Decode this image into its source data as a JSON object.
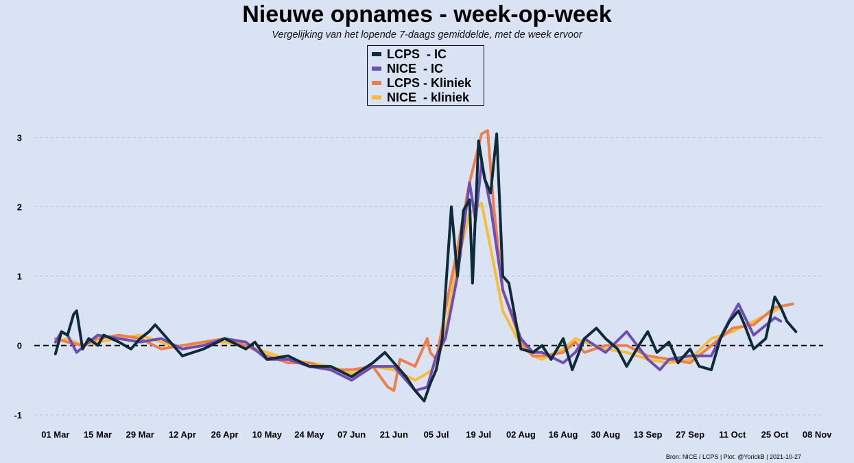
{
  "chart_data": {
    "type": "line",
    "title": "Nieuwe opnames - week-op-week",
    "subtitle": "Vergelijking van het lopende 7-daags gemiddelde, met de week ervoor",
    "xlabel": "",
    "ylabel": "",
    "x_range": [
      "2021-02-22",
      "2021-11-10"
    ],
    "ylim": [
      -1.15,
      3.35
    ],
    "yticks": [
      -1,
      0,
      1,
      2,
      3
    ],
    "ytick_labels": [
      "-1",
      "0",
      "1",
      "2",
      "3"
    ],
    "xticks": [
      "2021-03-01",
      "2021-03-15",
      "2021-03-29",
      "2021-04-12",
      "2021-04-26",
      "2021-05-10",
      "2021-05-24",
      "2021-06-07",
      "2021-06-21",
      "2021-07-05",
      "2021-07-19",
      "2021-08-02",
      "2021-08-16",
      "2021-08-30",
      "2021-09-13",
      "2021-09-27",
      "2021-10-11",
      "2021-10-25",
      "2021-11-08"
    ],
    "xtick_labels": [
      "01 Mar",
      "15 Mar",
      "29 Mar",
      "12 Apr",
      "26 Apr",
      "10 May",
      "24 May",
      "07 Jun",
      "21 Jun",
      "05 Jul",
      "19 Jul",
      "02 Aug",
      "16 Aug",
      "30 Aug",
      "13 Sep",
      "27 Sep",
      "11 Oct",
      "25 Oct",
      "08 Nov"
    ],
    "grid": "horizontal dashed",
    "zero_line": "dashed black",
    "legend_position": "top-center",
    "series": [
      {
        "name": "NICE  - kliniek",
        "color": "#f5bd3c",
        "points": [
          [
            "2021-03-01",
            0.05
          ],
          [
            "2021-03-05",
            0.1
          ],
          [
            "2021-03-10",
            0.0
          ],
          [
            "2021-03-15",
            0.05
          ],
          [
            "2021-03-22",
            0.1
          ],
          [
            "2021-03-29",
            0.15
          ],
          [
            "2021-04-05",
            0.05
          ],
          [
            "2021-04-12",
            -0.05
          ],
          [
            "2021-04-19",
            0.05
          ],
          [
            "2021-04-26",
            0.05
          ],
          [
            "2021-05-03",
            0.0
          ],
          [
            "2021-05-10",
            -0.1
          ],
          [
            "2021-05-17",
            -0.2
          ],
          [
            "2021-05-24",
            -0.25
          ],
          [
            "2021-05-31",
            -0.3
          ],
          [
            "2021-06-07",
            -0.4
          ],
          [
            "2021-06-14",
            -0.3
          ],
          [
            "2021-06-21",
            -0.35
          ],
          [
            "2021-06-28",
            -0.5
          ],
          [
            "2021-07-02",
            -0.4
          ],
          [
            "2021-07-05",
            -0.3
          ],
          [
            "2021-07-08",
            0.2
          ],
          [
            "2021-07-12",
            1.2
          ],
          [
            "2021-07-16",
            1.9
          ],
          [
            "2021-07-20",
            2.05
          ],
          [
            "2021-07-23",
            1.4
          ],
          [
            "2021-07-27",
            0.5
          ],
          [
            "2021-08-02",
            0.0
          ],
          [
            "2021-08-06",
            -0.15
          ],
          [
            "2021-08-09",
            -0.2
          ],
          [
            "2021-08-16",
            -0.05
          ],
          [
            "2021-08-20",
            0.1
          ],
          [
            "2021-08-23",
            0.05
          ],
          [
            "2021-08-30",
            -0.05
          ],
          [
            "2021-09-06",
            -0.1
          ],
          [
            "2021-09-13",
            -0.2
          ],
          [
            "2021-09-20",
            -0.25
          ],
          [
            "2021-09-27",
            -0.2
          ],
          [
            "2021-10-04",
            0.1
          ],
          [
            "2021-10-11",
            0.2
          ],
          [
            "2021-10-18",
            0.35
          ],
          [
            "2021-10-25",
            0.5
          ],
          [
            "2021-10-27",
            0.55
          ]
        ]
      },
      {
        "name": "LCPS - Kliniek",
        "color": "#ed7f4e",
        "points": [
          [
            "2021-03-01",
            0.1
          ],
          [
            "2021-03-05",
            0.05
          ],
          [
            "2021-03-10",
            0.0
          ],
          [
            "2021-03-15",
            0.1
          ],
          [
            "2021-03-22",
            0.15
          ],
          [
            "2021-03-29",
            0.1
          ],
          [
            "2021-04-05",
            -0.05
          ],
          [
            "2021-04-12",
            0.0
          ],
          [
            "2021-04-19",
            0.05
          ],
          [
            "2021-04-26",
            0.1
          ],
          [
            "2021-05-03",
            0.0
          ],
          [
            "2021-05-10",
            -0.15
          ],
          [
            "2021-05-17",
            -0.25
          ],
          [
            "2021-05-24",
            -0.25
          ],
          [
            "2021-05-31",
            -0.35
          ],
          [
            "2021-06-07",
            -0.35
          ],
          [
            "2021-06-14",
            -0.3
          ],
          [
            "2021-06-19",
            -0.6
          ],
          [
            "2021-06-21",
            -0.65
          ],
          [
            "2021-06-23",
            -0.2
          ],
          [
            "2021-06-28",
            -0.3
          ],
          [
            "2021-07-02",
            0.1
          ],
          [
            "2021-07-03",
            -0.1
          ],
          [
            "2021-07-05",
            -0.2
          ],
          [
            "2021-07-08",
            0.5
          ],
          [
            "2021-07-12",
            1.4
          ],
          [
            "2021-07-16",
            2.35
          ],
          [
            "2021-07-20",
            3.05
          ],
          [
            "2021-07-22",
            3.1
          ],
          [
            "2021-07-24",
            2.0
          ],
          [
            "2021-07-27",
            0.8
          ],
          [
            "2021-08-02",
            0.05
          ],
          [
            "2021-08-06",
            -0.15
          ],
          [
            "2021-08-09",
            -0.15
          ],
          [
            "2021-08-16",
            -0.1
          ],
          [
            "2021-08-20",
            0.05
          ],
          [
            "2021-08-23",
            -0.1
          ],
          [
            "2021-08-30",
            0.0
          ],
          [
            "2021-09-06",
            0.0
          ],
          [
            "2021-09-13",
            -0.15
          ],
          [
            "2021-09-20",
            -0.2
          ],
          [
            "2021-09-27",
            -0.25
          ],
          [
            "2021-10-04",
            0.0
          ],
          [
            "2021-10-11",
            0.25
          ],
          [
            "2021-10-18",
            0.3
          ],
          [
            "2021-10-25",
            0.55
          ],
          [
            "2021-10-31",
            0.6
          ]
        ]
      },
      {
        "name": "NICE  - IC",
        "color": "#6d4fb3",
        "points": [
          [
            "2021-03-01",
            0.05
          ],
          [
            "2021-03-03",
            0.2
          ],
          [
            "2021-03-05",
            0.15
          ],
          [
            "2021-03-08",
            -0.1
          ],
          [
            "2021-03-12",
            0.05
          ],
          [
            "2021-03-15",
            0.15
          ],
          [
            "2021-03-22",
            0.1
          ],
          [
            "2021-03-29",
            0.05
          ],
          [
            "2021-04-05",
            0.1
          ],
          [
            "2021-04-12",
            -0.05
          ],
          [
            "2021-04-19",
            0.0
          ],
          [
            "2021-04-26",
            0.1
          ],
          [
            "2021-05-03",
            0.05
          ],
          [
            "2021-05-10",
            -0.2
          ],
          [
            "2021-05-17",
            -0.2
          ],
          [
            "2021-05-24",
            -0.3
          ],
          [
            "2021-05-31",
            -0.35
          ],
          [
            "2021-06-07",
            -0.5
          ],
          [
            "2021-06-14",
            -0.3
          ],
          [
            "2021-06-21",
            -0.3
          ],
          [
            "2021-06-28",
            -0.65
          ],
          [
            "2021-07-02",
            -0.6
          ],
          [
            "2021-07-05",
            -0.15
          ],
          [
            "2021-07-08",
            0.1
          ],
          [
            "2021-07-12",
            1.0
          ],
          [
            "2021-07-16",
            2.35
          ],
          [
            "2021-07-18",
            1.8
          ],
          [
            "2021-07-20",
            2.65
          ],
          [
            "2021-07-23",
            2.0
          ],
          [
            "2021-07-27",
            0.8
          ],
          [
            "2021-08-02",
            0.1
          ],
          [
            "2021-08-06",
            -0.1
          ],
          [
            "2021-08-09",
            -0.1
          ],
          [
            "2021-08-16",
            -0.25
          ],
          [
            "2021-08-20",
            -0.1
          ],
          [
            "2021-08-23",
            0.1
          ],
          [
            "2021-08-30",
            -0.1
          ],
          [
            "2021-09-06",
            0.2
          ],
          [
            "2021-09-13",
            -0.2
          ],
          [
            "2021-09-17",
            -0.35
          ],
          [
            "2021-09-20",
            -0.2
          ],
          [
            "2021-09-27",
            -0.15
          ],
          [
            "2021-10-04",
            -0.15
          ],
          [
            "2021-10-08",
            0.2
          ],
          [
            "2021-10-11",
            0.45
          ],
          [
            "2021-10-13",
            0.6
          ],
          [
            "2021-10-18",
            0.15
          ],
          [
            "2021-10-25",
            0.4
          ],
          [
            "2021-10-27",
            0.35
          ]
        ]
      },
      {
        "name": "LCPS  - IC",
        "color": "#0d2b3a",
        "points": [
          [
            "2021-03-01",
            -0.12
          ],
          [
            "2021-03-03",
            0.2
          ],
          [
            "2021-03-05",
            0.15
          ],
          [
            "2021-03-07",
            0.45
          ],
          [
            "2021-03-08",
            0.5
          ],
          [
            "2021-03-10",
            -0.05
          ],
          [
            "2021-03-12",
            0.1
          ],
          [
            "2021-03-15",
            0.0
          ],
          [
            "2021-03-17",
            0.15
          ],
          [
            "2021-03-22",
            0.05
          ],
          [
            "2021-03-26",
            -0.05
          ],
          [
            "2021-03-29",
            0.1
          ],
          [
            "2021-04-01",
            0.2
          ],
          [
            "2021-04-03",
            0.3
          ],
          [
            "2021-04-07",
            0.1
          ],
          [
            "2021-04-12",
            -0.15
          ],
          [
            "2021-04-19",
            -0.05
          ],
          [
            "2021-04-26",
            0.1
          ],
          [
            "2021-05-03",
            -0.05
          ],
          [
            "2021-05-06",
            0.05
          ],
          [
            "2021-05-10",
            -0.2
          ],
          [
            "2021-05-17",
            -0.15
          ],
          [
            "2021-05-24",
            -0.3
          ],
          [
            "2021-05-31",
            -0.3
          ],
          [
            "2021-06-07",
            -0.45
          ],
          [
            "2021-06-14",
            -0.25
          ],
          [
            "2021-06-18",
            -0.1
          ],
          [
            "2021-06-21",
            -0.25
          ],
          [
            "2021-06-25",
            -0.45
          ],
          [
            "2021-06-28",
            -0.65
          ],
          [
            "2021-07-01",
            -0.8
          ],
          [
            "2021-07-03",
            -0.55
          ],
          [
            "2021-07-05",
            -0.35
          ],
          [
            "2021-07-07",
            0.1
          ],
          [
            "2021-07-10",
            2.0
          ],
          [
            "2021-07-12",
            1.0
          ],
          [
            "2021-07-14",
            1.95
          ],
          [
            "2021-07-16",
            2.1
          ],
          [
            "2021-07-17",
            0.9
          ],
          [
            "2021-07-19",
            2.95
          ],
          [
            "2021-07-21",
            2.4
          ],
          [
            "2021-07-23",
            2.2
          ],
          [
            "2021-07-25",
            3.05
          ],
          [
            "2021-07-27",
            1.0
          ],
          [
            "2021-07-29",
            0.9
          ],
          [
            "2021-08-02",
            -0.05
          ],
          [
            "2021-08-06",
            -0.1
          ],
          [
            "2021-08-09",
            0.0
          ],
          [
            "2021-08-12",
            -0.2
          ],
          [
            "2021-08-16",
            0.1
          ],
          [
            "2021-08-19",
            -0.35
          ],
          [
            "2021-08-23",
            0.1
          ],
          [
            "2021-08-27",
            0.25
          ],
          [
            "2021-08-30",
            0.1
          ],
          [
            "2021-09-03",
            -0.05
          ],
          [
            "2021-09-06",
            -0.3
          ],
          [
            "2021-09-10",
            0.0
          ],
          [
            "2021-09-13",
            0.2
          ],
          [
            "2021-09-16",
            -0.1
          ],
          [
            "2021-09-20",
            0.05
          ],
          [
            "2021-09-23",
            -0.25
          ],
          [
            "2021-09-27",
            -0.05
          ],
          [
            "2021-09-30",
            -0.3
          ],
          [
            "2021-10-04",
            -0.35
          ],
          [
            "2021-10-07",
            0.1
          ],
          [
            "2021-10-10",
            0.35
          ],
          [
            "2021-10-13",
            0.5
          ],
          [
            "2021-10-15",
            0.3
          ],
          [
            "2021-10-18",
            -0.05
          ],
          [
            "2021-10-22",
            0.1
          ],
          [
            "2021-10-25",
            0.7
          ],
          [
            "2021-10-27",
            0.55
          ],
          [
            "2021-10-29",
            0.35
          ],
          [
            "2021-11-01",
            0.2
          ]
        ]
      }
    ],
    "source": "Bron: NICE / LCPS | Plot: @YorickB |  2021-10-27"
  },
  "legend": {
    "items": [
      {
        "label": "LCPS  - IC",
        "color": "#0d2b3a"
      },
      {
        "label": "NICE  - IC",
        "color": "#6d4fb3"
      },
      {
        "label": "LCPS - Kliniek",
        "color": "#ed7f4e"
      },
      {
        "label": "NICE  - kliniek",
        "color": "#f5bd3c"
      }
    ]
  }
}
